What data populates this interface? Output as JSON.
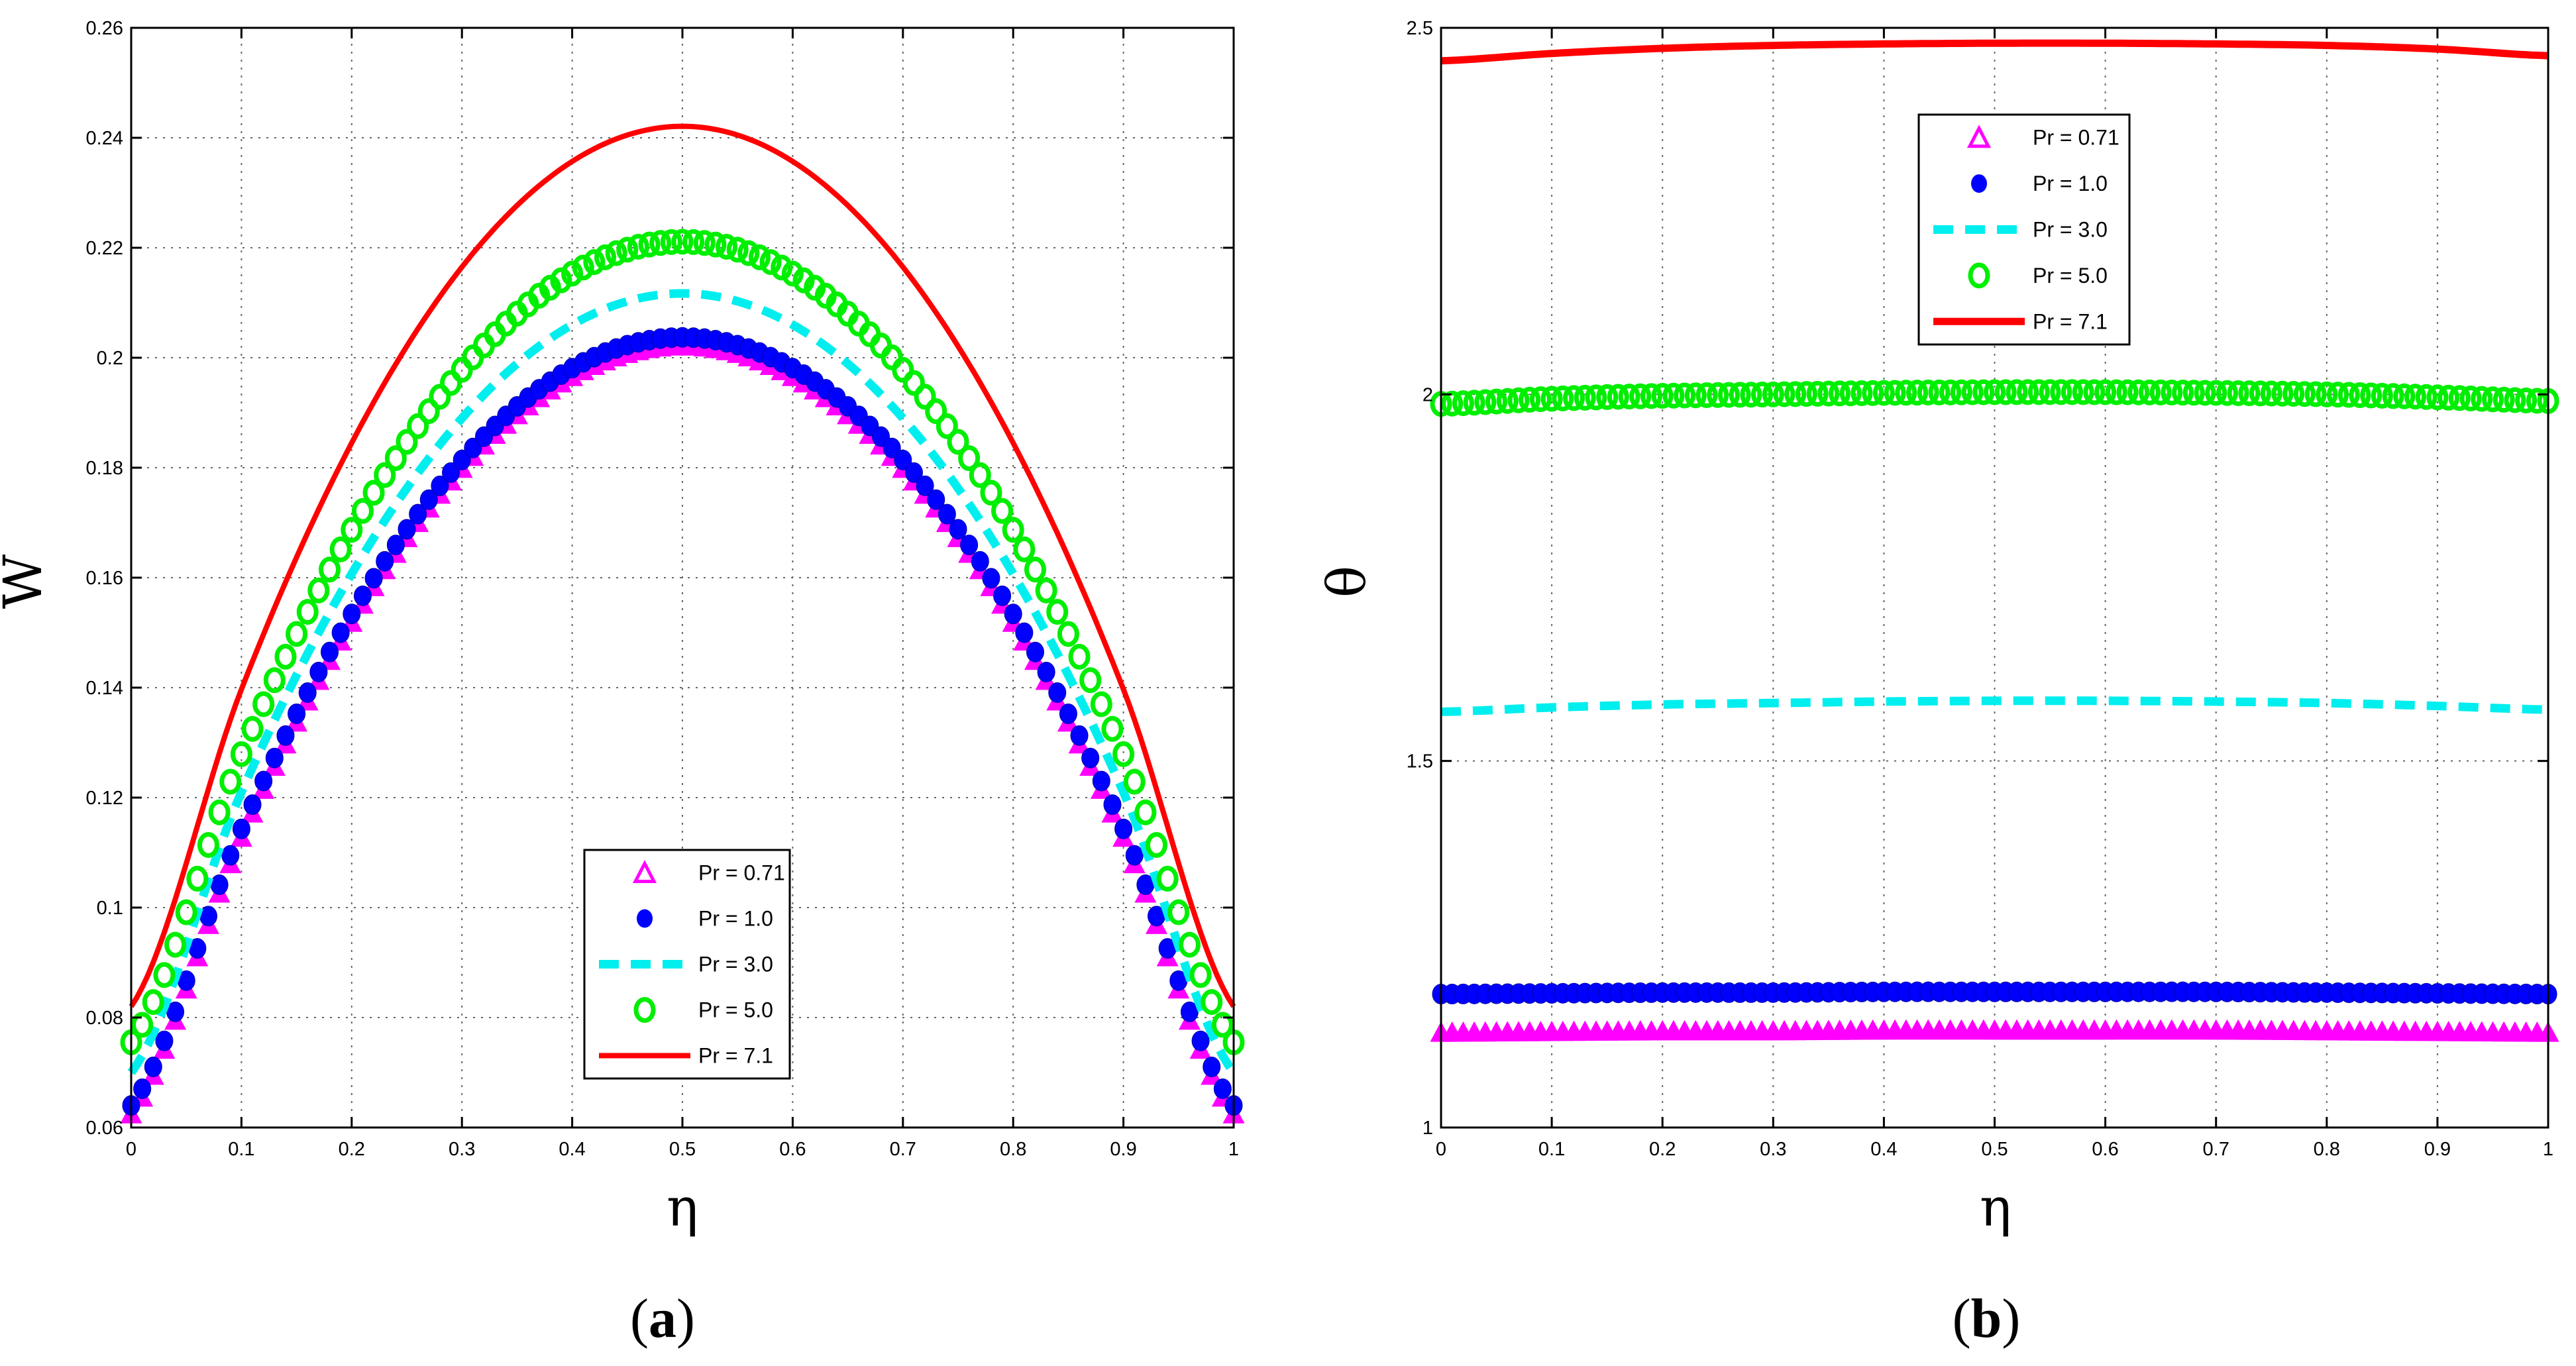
{
  "figure": {
    "colors": {
      "pr071": "#ff00ff",
      "pr10": "#0000ff",
      "pr30": "#00eeee",
      "pr50": "#00ee00",
      "pr71": "#ff0000",
      "axis": "#000000",
      "grid": "#666666"
    }
  },
  "chart_data": [
    {
      "id": "a",
      "type": "line",
      "panel_label": "a",
      "xlabel": "η",
      "ylabel": "W",
      "xlim": [
        0,
        1
      ],
      "ylim": [
        0.06,
        0.26
      ],
      "xticks": [
        0,
        0.1,
        0.2,
        0.3,
        0.4,
        0.5,
        0.6,
        0.7,
        0.8,
        0.9,
        1
      ],
      "xtick_labels": [
        "0",
        "0.1",
        "0.2",
        "0.3",
        "0.4",
        "0.5",
        "0.6",
        "0.7",
        "0.8",
        "0.9",
        "1"
      ],
      "yticks": [
        0.06,
        0.08,
        0.1,
        0.12,
        0.14,
        0.16,
        0.18,
        0.2,
        0.22,
        0.24,
        0.26
      ],
      "ytick_labels": [
        "0.06",
        "0.08",
        "0.1",
        "0.12",
        "0.14",
        "0.16",
        "0.18",
        "0.2",
        "0.22",
        "0.24",
        "0.26"
      ],
      "grid": true,
      "legend": {
        "position": "lower-center",
        "entries": [
          "Pr = 0.71",
          "Pr = 1.0",
          "Pr = 3.0",
          "Pr = 5.0",
          "Pr = 7.1"
        ]
      },
      "series": [
        {
          "name": "Pr = 0.71",
          "style": "triangle-markers",
          "color": "#ff00ff",
          "x": [
            0,
            0.1,
            0.2,
            0.3,
            0.4,
            0.5,
            0.6,
            0.7,
            0.8,
            0.9,
            1
          ],
          "values": [
            0.0625,
            0.1128,
            0.1519,
            0.1799,
            0.1966,
            0.2022,
            0.1966,
            0.1799,
            0.1519,
            0.1128,
            0.0625
          ]
        },
        {
          "name": "Pr = 1.0",
          "style": "dot-markers",
          "color": "#0000ff",
          "x": [
            0,
            0.1,
            0.2,
            0.3,
            0.4,
            0.5,
            0.6,
            0.7,
            0.8,
            0.9,
            1
          ],
          "values": [
            0.064,
            0.1143,
            0.1534,
            0.1814,
            0.1981,
            0.2037,
            0.1981,
            0.1814,
            0.1534,
            0.1143,
            0.064
          ]
        },
        {
          "name": "Pr = 3.0",
          "style": "dashed",
          "color": "#00eeee",
          "x": [
            0,
            0.1,
            0.2,
            0.3,
            0.4,
            0.5,
            0.6,
            0.7,
            0.8,
            0.9,
            1
          ],
          "values": [
            0.07,
            0.121,
            0.1607,
            0.189,
            0.206,
            0.2117,
            0.206,
            0.189,
            0.1607,
            0.121,
            0.07
          ]
        },
        {
          "name": "Pr = 5.0",
          "style": "circle-markers",
          "color": "#00ee00",
          "x": [
            0,
            0.1,
            0.2,
            0.3,
            0.4,
            0.5,
            0.6,
            0.7,
            0.8,
            0.9,
            1
          ],
          "values": [
            0.0755,
            0.1279,
            0.1687,
            0.1978,
            0.2153,
            0.2211,
            0.2153,
            0.1978,
            0.1687,
            0.1279,
            0.0755
          ]
        },
        {
          "name": "Pr = 7.1",
          "style": "solid",
          "color": "#ff0000",
          "x": [
            0,
            0.1,
            0.2,
            0.3,
            0.4,
            0.5,
            0.6,
            0.7,
            0.8,
            0.9,
            1
          ],
          "values": [
            0.082,
            0.1397,
            0.1845,
            0.2165,
            0.2357,
            0.2421,
            0.2357,
            0.2165,
            0.1845,
            0.1397,
            0.082
          ]
        }
      ]
    },
    {
      "id": "b",
      "type": "line",
      "panel_label": "b",
      "xlabel": "η",
      "ylabel": "θ",
      "xlim": [
        0,
        1
      ],
      "ylim": [
        1,
        2.5
      ],
      "xticks": [
        0,
        0.1,
        0.2,
        0.3,
        0.4,
        0.5,
        0.6,
        0.7,
        0.8,
        0.9,
        1
      ],
      "xtick_labels": [
        "0",
        "0.1",
        "0.2",
        "0.3",
        "0.4",
        "0.5",
        "0.6",
        "0.7",
        "0.8",
        "0.9",
        "1"
      ],
      "yticks": [
        1,
        1.5,
        2,
        2.5
      ],
      "ytick_labels": [
        "1",
        "1.5",
        "2",
        "2.5"
      ],
      "grid": true,
      "legend": {
        "position": "top-left",
        "entries": [
          "Pr = 0.71",
          "Pr = 1.0",
          "Pr = 3.0",
          "Pr = 5.0",
          "Pr = 7.1"
        ]
      },
      "series": [
        {
          "name": "Pr = 0.71",
          "style": "triangle-markers",
          "color": "#ff00ff",
          "x": [
            0,
            0.1,
            0.2,
            0.3,
            0.4,
            0.5,
            0.6,
            0.7,
            0.8,
            0.9,
            1
          ],
          "values": [
            1.13,
            1.131,
            1.132,
            1.132,
            1.133,
            1.133,
            1.133,
            1.133,
            1.132,
            1.131,
            1.13
          ]
        },
        {
          "name": "Pr = 1.0",
          "style": "dot-markers",
          "color": "#0000ff",
          "x": [
            0,
            0.1,
            0.2,
            0.3,
            0.4,
            0.5,
            0.6,
            0.7,
            0.8,
            0.9,
            1
          ],
          "values": [
            1.182,
            1.183,
            1.184,
            1.184,
            1.185,
            1.185,
            1.185,
            1.185,
            1.184,
            1.183,
            1.182
          ]
        },
        {
          "name": "Pr = 3.0",
          "style": "dashed",
          "color": "#00eeee",
          "x": [
            0,
            0.1,
            0.2,
            0.3,
            0.4,
            0.5,
            0.6,
            0.7,
            0.8,
            0.9,
            1
          ],
          "values": [
            1.567,
            1.573,
            1.577,
            1.579,
            1.581,
            1.582,
            1.582,
            1.581,
            1.579,
            1.575,
            1.57
          ]
        },
        {
          "name": "Pr = 5.0",
          "style": "circle-markers",
          "color": "#00ee00",
          "x": [
            0,
            0.1,
            0.2,
            0.3,
            0.4,
            0.5,
            0.6,
            0.7,
            0.8,
            0.9,
            1
          ],
          "values": [
            1.987,
            1.994,
            1.998,
            2.0,
            2.002,
            2.003,
            2.003,
            2.002,
            2.0,
            1.996,
            1.991
          ]
        },
        {
          "name": "Pr = 7.1",
          "style": "solid",
          "color": "#ff0000",
          "x": [
            0,
            0.1,
            0.2,
            0.3,
            0.4,
            0.5,
            0.6,
            0.7,
            0.8,
            0.9,
            1
          ],
          "values": [
            2.455,
            2.465,
            2.472,
            2.476,
            2.478,
            2.479,
            2.479,
            2.478,
            2.476,
            2.471,
            2.462
          ]
        }
      ]
    }
  ]
}
